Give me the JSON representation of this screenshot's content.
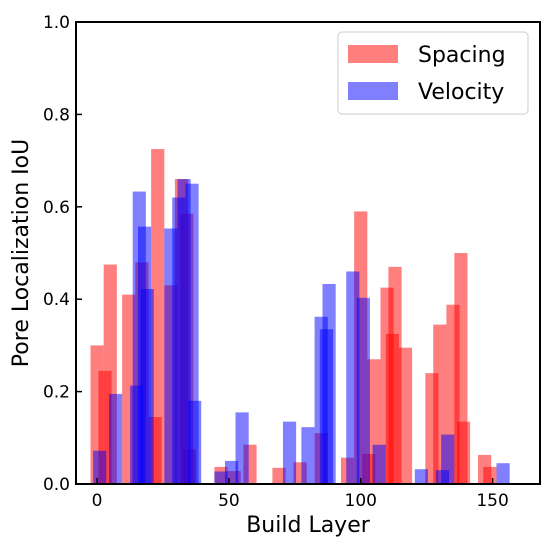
{
  "chart_data": {
    "type": "bar",
    "title": "",
    "xlabel": "Build Layer",
    "ylabel": "Pore Localization IoU",
    "xlim": [
      -8,
      168
    ],
    "ylim": [
      0,
      1.0
    ],
    "xticks": [
      0,
      50,
      100,
      150
    ],
    "yticks": [
      0.0,
      0.2,
      0.4,
      0.6,
      0.8,
      1.0
    ],
    "xtick_labels": [
      "0",
      "50",
      "100",
      "150"
    ],
    "ytick_labels": [
      "0.0",
      "0.2",
      "0.4",
      "0.6",
      "0.8",
      "1.0"
    ],
    "grid": false,
    "legend": "top-right",
    "bar_width": 5,
    "series": [
      {
        "name": "Spacing",
        "color": "#ff0000",
        "opacity": 0.5,
        "points": [
          {
            "x": 0,
            "y": 0.3
          },
          {
            "x": 3,
            "y": 0.245
          },
          {
            "x": 5,
            "y": 0.475
          },
          {
            "x": 12,
            "y": 0.41
          },
          {
            "x": 17,
            "y": 0.48
          },
          {
            "x": 22,
            "y": 0.145
          },
          {
            "x": 23,
            "y": 0.725
          },
          {
            "x": 28,
            "y": 0.43
          },
          {
            "x": 32,
            "y": 0.66
          },
          {
            "x": 34,
            "y": 0.585
          },
          {
            "x": 35,
            "y": 0.075
          },
          {
            "x": 47,
            "y": 0.037
          },
          {
            "x": 52,
            "y": 0.028
          },
          {
            "x": 58,
            "y": 0.085
          },
          {
            "x": 69,
            "y": 0.035
          },
          {
            "x": 77,
            "y": 0.047
          },
          {
            "x": 85,
            "y": 0.11
          },
          {
            "x": 95,
            "y": 0.057
          },
          {
            "x": 100,
            "y": 0.59
          },
          {
            "x": 103,
            "y": 0.065
          },
          {
            "x": 105,
            "y": 0.27
          },
          {
            "x": 110,
            "y": 0.425
          },
          {
            "x": 112,
            "y": 0.325
          },
          {
            "x": 113,
            "y": 0.47
          },
          {
            "x": 117,
            "y": 0.295
          },
          {
            "x": 127,
            "y": 0.24
          },
          {
            "x": 130,
            "y": 0.345
          },
          {
            "x": 135,
            "y": 0.388
          },
          {
            "x": 138,
            "y": 0.5
          },
          {
            "x": 139,
            "y": 0.135
          },
          {
            "x": 147,
            "y": 0.063
          },
          {
            "x": 149,
            "y": 0.037
          }
        ]
      },
      {
        "name": "Velocity",
        "color": "#0000ff",
        "opacity": 0.5,
        "points": [
          {
            "x": 1,
            "y": 0.072
          },
          {
            "x": 7,
            "y": 0.195
          },
          {
            "x": 15,
            "y": 0.213
          },
          {
            "x": 16,
            "y": 0.633
          },
          {
            "x": 18,
            "y": 0.557
          },
          {
            "x": 19,
            "y": 0.422
          },
          {
            "x": 28,
            "y": 0.553
          },
          {
            "x": 31,
            "y": 0.62
          },
          {
            "x": 33,
            "y": 0.66
          },
          {
            "x": 36,
            "y": 0.65
          },
          {
            "x": 37,
            "y": 0.18
          },
          {
            "x": 47,
            "y": 0.027
          },
          {
            "x": 51,
            "y": 0.05
          },
          {
            "x": 55,
            "y": 0.155
          },
          {
            "x": 73,
            "y": 0.135
          },
          {
            "x": 80,
            "y": 0.123
          },
          {
            "x": 85,
            "y": 0.362
          },
          {
            "x": 87,
            "y": 0.335
          },
          {
            "x": 88,
            "y": 0.433
          },
          {
            "x": 97,
            "y": 0.46
          },
          {
            "x": 101,
            "y": 0.403
          },
          {
            "x": 107,
            "y": 0.085
          },
          {
            "x": 123,
            "y": 0.032
          },
          {
            "x": 131,
            "y": 0.03
          },
          {
            "x": 133,
            "y": 0.107
          },
          {
            "x": 154,
            "y": 0.045
          }
        ]
      }
    ]
  }
}
